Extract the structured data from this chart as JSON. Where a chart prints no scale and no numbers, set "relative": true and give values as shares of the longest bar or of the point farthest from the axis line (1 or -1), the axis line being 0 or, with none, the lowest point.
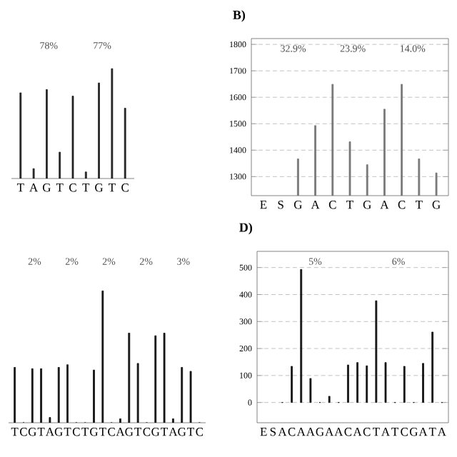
{
  "chart_data": [
    {
      "type": "bar",
      "relative": true,
      "tick_labels": "x",
      "categories": [
        "T",
        "A",
        "G",
        "T",
        "C",
        "T",
        "G",
        "T",
        "C"
      ],
      "color": "#222222",
      "values": [
        0.78,
        0.09,
        0.81,
        0.24,
        0.75,
        0.06,
        0.87,
        1,
        0.64
      ],
      "annotations": [
        "78%",
        "77%"
      ]
    },
    {
      "type": "bar",
      "title": "B)",
      "categories": [
        "E",
        "S",
        "G",
        "A",
        "C",
        "T",
        "G",
        "A",
        "C",
        "T",
        "G"
      ],
      "color": "#777777",
      "values": [
        null,
        null,
        1367,
        1493,
        1649,
        1432,
        1345,
        1555,
        1649,
        1367,
        1314
      ],
      "ylim": [
        1228,
        1822
      ],
      "yticks": [
        1300,
        1400,
        1500,
        1600,
        1700,
        1800
      ],
      "grid": "y",
      "annotations": [
        "32.9%",
        "23.9%",
        "14.0%"
      ]
    },
    {
      "type": "bar",
      "relative": true,
      "tick_labels": "x",
      "categories": [
        "T",
        "C",
        "G",
        "T",
        "A",
        "G",
        "T",
        "C",
        "T",
        "G",
        "T",
        "C",
        "A",
        "G",
        "T",
        "C",
        "G",
        "T",
        "A",
        "G",
        "T",
        "C"
      ],
      "color": "#111111",
      "values": [
        0.42,
        0,
        0.41,
        0.41,
        0.04,
        0.42,
        0.44,
        0,
        0,
        0.4,
        1,
        0,
        0.03,
        0.68,
        0.45,
        0,
        0.66,
        0.68,
        0.03,
        0.42,
        0.39,
        0
      ],
      "annotations": [
        "2%",
        "2%",
        "2%",
        "2%",
        "3%"
      ]
    },
    {
      "type": "bar",
      "title": "D)",
      "categories": [
        "E",
        "S",
        "A",
        "C",
        "A",
        "A",
        "G",
        "A",
        "A",
        "C",
        "A",
        "C",
        "T",
        "A",
        "T",
        "C",
        "G",
        "A",
        "T",
        "A"
      ],
      "color": "#111111",
      "values": [
        null,
        null,
        0,
        134,
        493,
        89,
        0,
        23,
        0,
        139,
        148,
        136,
        377,
        148,
        0,
        134,
        0,
        145,
        261,
        0
      ],
      "ylim": [
        -75,
        560
      ],
      "yticks": [
        0,
        100,
        200,
        300,
        400,
        500
      ],
      "grid": "y",
      "annotations": [
        "5%",
        "6%"
      ]
    }
  ]
}
